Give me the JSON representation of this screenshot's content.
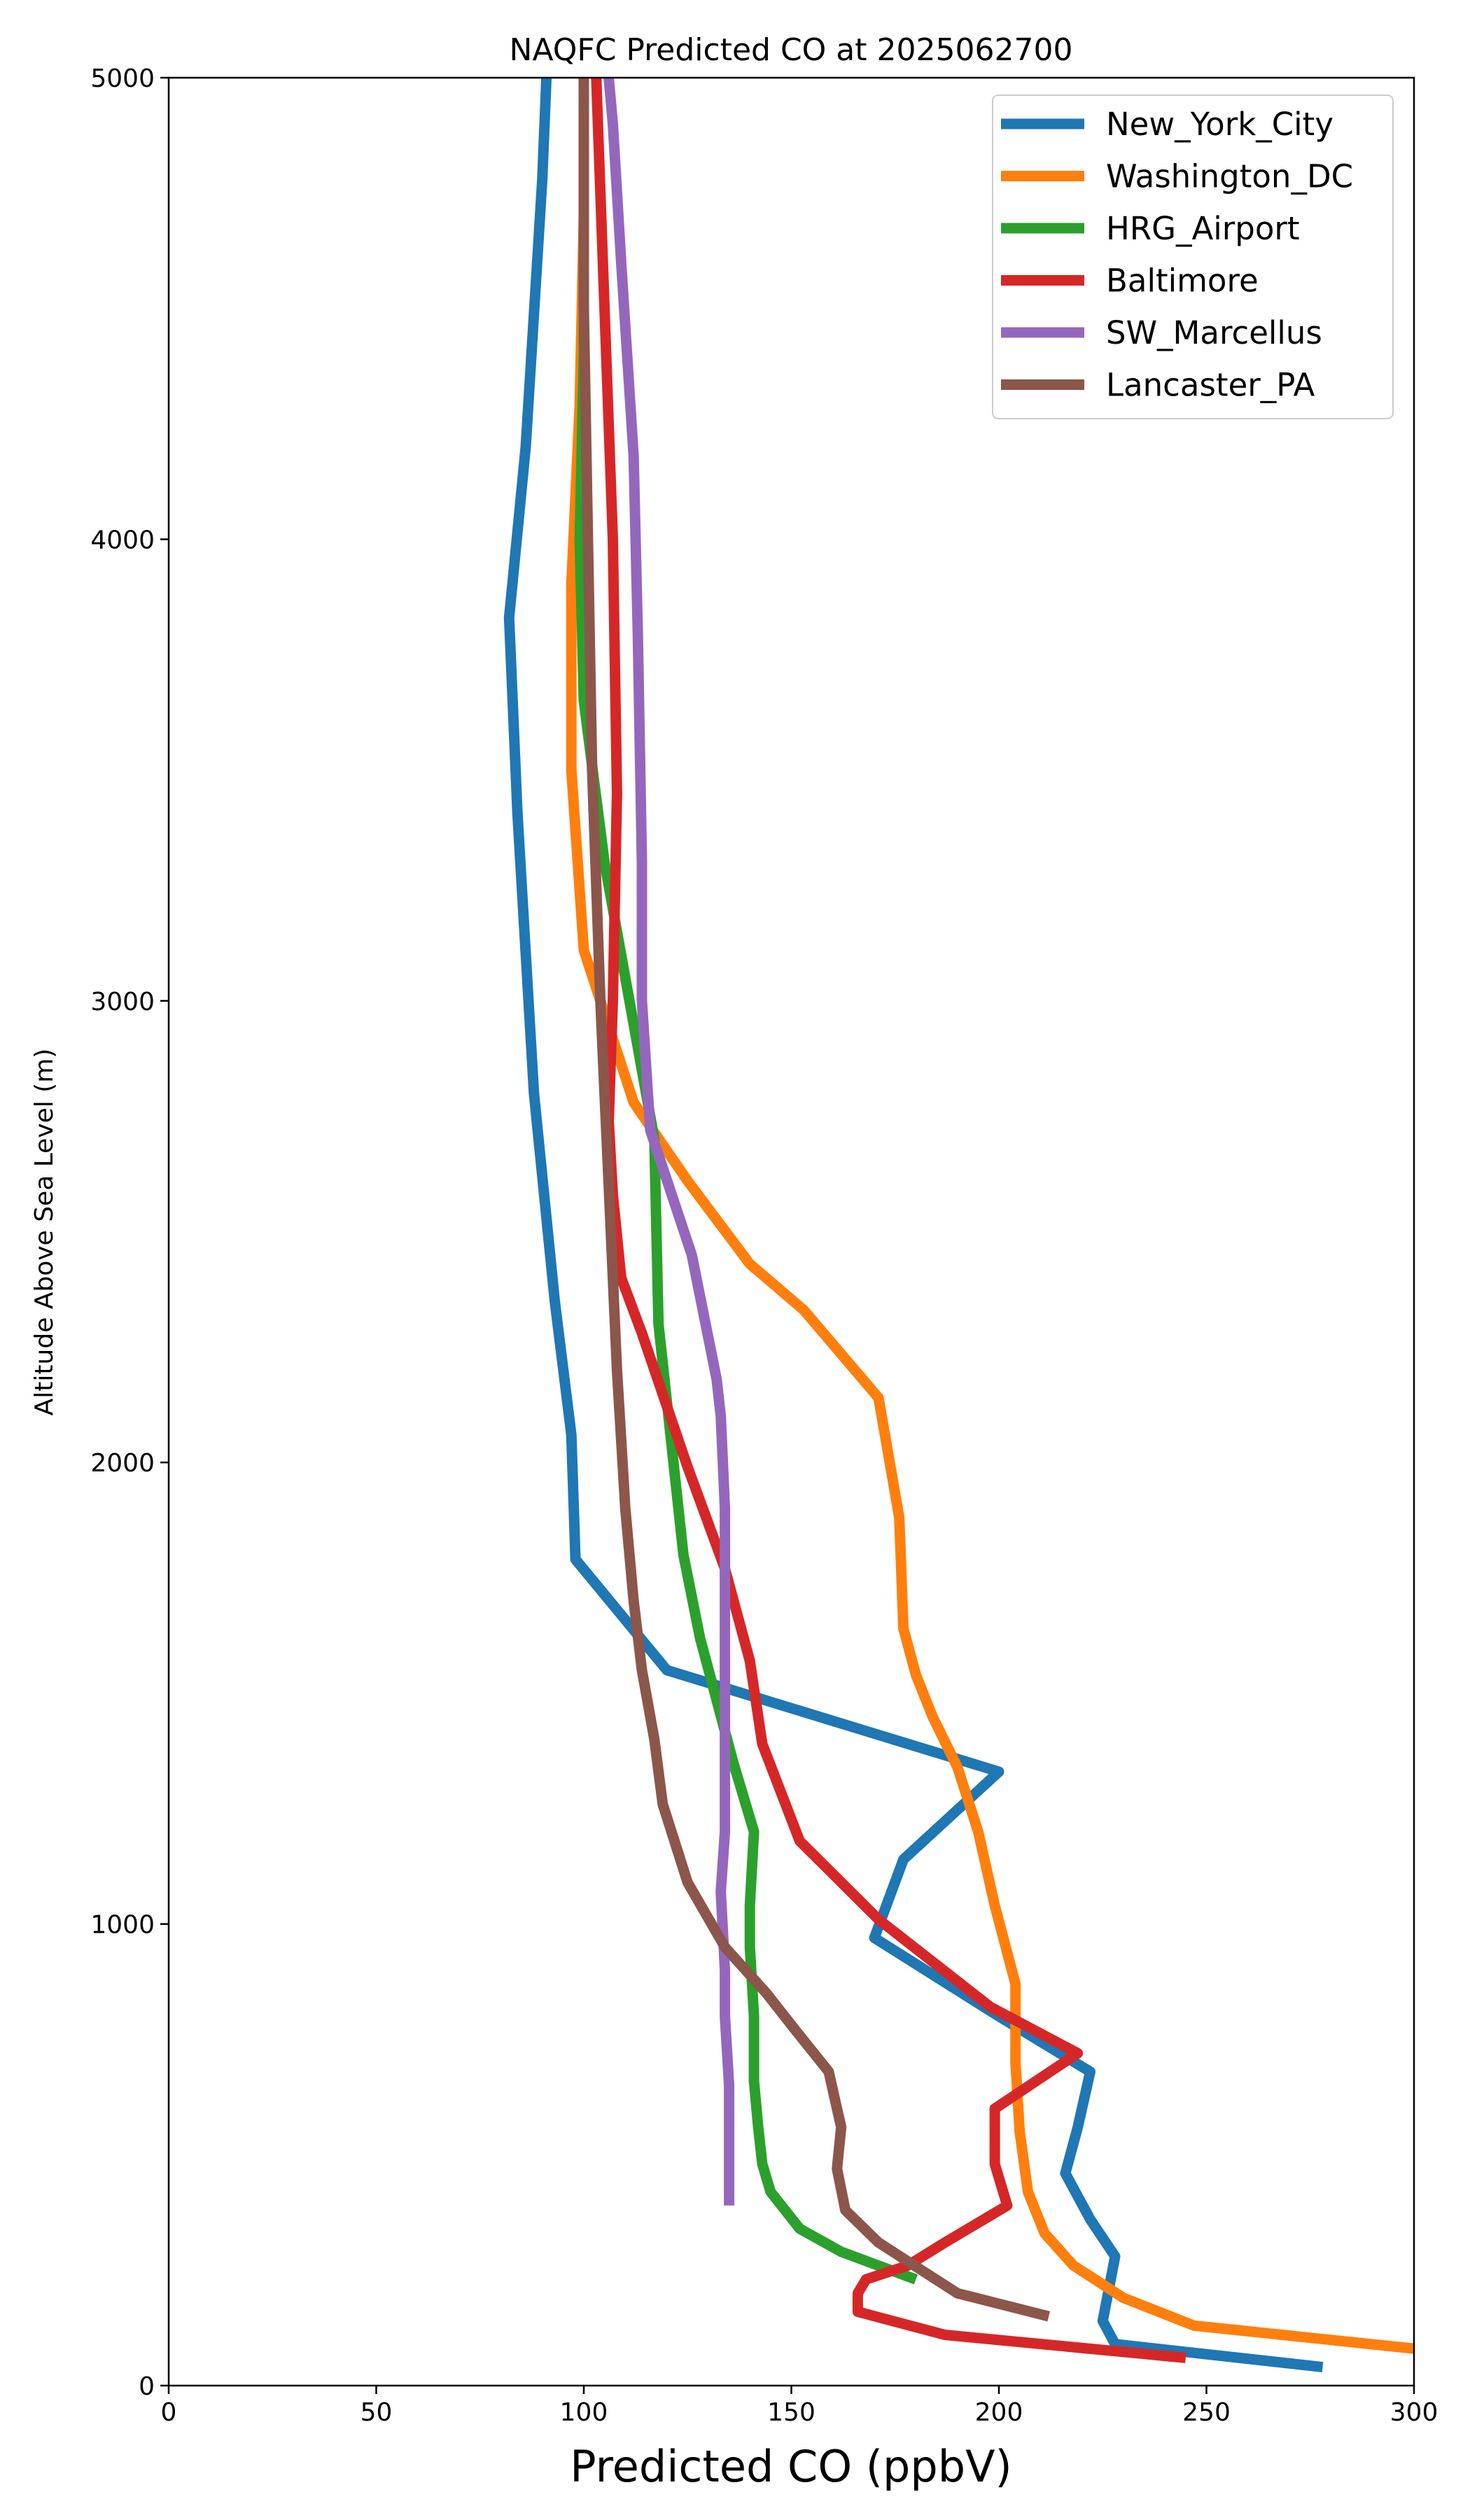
{
  "chart_data": {
    "type": "line",
    "title": "NAQFC Predicted CO at 2025062700",
    "xlabel": "Predicted CO (ppbV)",
    "ylabel": "Altitude Above Sea Level (m)",
    "xlim": [
      0,
      300
    ],
    "ylim": [
      0,
      5000
    ],
    "xticks": [
      "0",
      "50",
      "100",
      "150",
      "200",
      "250",
      "300"
    ],
    "yticks": [
      "0",
      "1000",
      "2000",
      "3000",
      "4000",
      "5000"
    ],
    "grid": false,
    "legend_position": "top-right",
    "series": [
      {
        "name": "New_York_City",
        "color": "#1f77b4",
        "points": [
          [
            278,
            40
          ],
          [
            228,
            90
          ],
          [
            225,
            140
          ],
          [
            228,
            280
          ],
          [
            222,
            360
          ],
          [
            216,
            460
          ],
          [
            219,
            560
          ],
          [
            222,
            680
          ],
          [
            200,
            800
          ],
          [
            170,
            970
          ],
          [
            177,
            1140
          ],
          [
            200,
            1330
          ],
          [
            120,
            1550
          ],
          [
            98,
            1790
          ],
          [
            97,
            2060
          ],
          [
            93,
            2350
          ],
          [
            88,
            2800
          ],
          [
            84,
            3410
          ],
          [
            82,
            3830
          ],
          [
            86,
            4200
          ],
          [
            90,
            4780
          ],
          [
            91,
            5000
          ]
        ]
      },
      {
        "name": "Washington_DC",
        "color": "#ff7f0e",
        "points": [
          [
            300,
            80
          ],
          [
            247,
            130
          ],
          [
            230,
            190
          ],
          [
            218,
            260
          ],
          [
            211,
            330
          ],
          [
            207,
            420
          ],
          [
            205,
            550
          ],
          [
            204,
            700
          ],
          [
            204,
            870
          ],
          [
            199,
            1040
          ],
          [
            195,
            1200
          ],
          [
            190,
            1340
          ],
          [
            184,
            1450
          ],
          [
            180,
            1540
          ],
          [
            177,
            1640
          ],
          [
            176,
            1880
          ],
          [
            171,
            2140
          ],
          [
            153,
            2330
          ],
          [
            140,
            2430
          ],
          [
            125,
            2610
          ],
          [
            112,
            2780
          ],
          [
            100,
            3110
          ],
          [
            97,
            3500
          ],
          [
            97,
            3900
          ],
          [
            99,
            4290
          ],
          [
            100,
            4700
          ],
          [
            100,
            5000
          ]
        ]
      },
      {
        "name": "HRG_Airport",
        "color": "#2ca02c",
        "points": [
          [
            180,
            230
          ],
          [
            162,
            290
          ],
          [
            152,
            340
          ],
          [
            145,
            420
          ],
          [
            143,
            480
          ],
          [
            142,
            560
          ],
          [
            141,
            660
          ],
          [
            141,
            800
          ],
          [
            140,
            950
          ],
          [
            140,
            1040
          ],
          [
            141,
            1200
          ],
          [
            136,
            1350
          ],
          [
            128,
            1620
          ],
          [
            124,
            1800
          ],
          [
            118,
            2300
          ],
          [
            117,
            2700
          ],
          [
            111,
            3000
          ],
          [
            105,
            3300
          ],
          [
            100,
            3650
          ],
          [
            99,
            4000
          ],
          [
            100,
            4400
          ],
          [
            100,
            4700
          ],
          [
            100,
            5000
          ]
        ]
      },
      {
        "name": "Baltimore",
        "color": "#d62728",
        "points": [
          [
            245,
            60
          ],
          [
            187,
            110
          ],
          [
            166,
            160
          ],
          [
            166,
            200
          ],
          [
            168,
            230
          ],
          [
            178,
            260
          ],
          [
            187,
            310
          ],
          [
            202,
            390
          ],
          [
            199,
            480
          ],
          [
            199,
            600
          ],
          [
            219,
            720
          ],
          [
            198,
            820
          ],
          [
            171,
            1010
          ],
          [
            152,
            1180
          ],
          [
            143,
            1390
          ],
          [
            140,
            1570
          ],
          [
            134,
            1770
          ],
          [
            125,
            1990
          ],
          [
            114,
            2280
          ],
          [
            109,
            2400
          ],
          [
            107,
            2580
          ],
          [
            106,
            2740
          ],
          [
            107,
            3000
          ],
          [
            108,
            3450
          ],
          [
            107,
            4000
          ],
          [
            105,
            4500
          ],
          [
            103,
            5000
          ]
        ]
      },
      {
        "name": "SW_Marcellus",
        "color": "#9467bd",
        "points": [
          [
            135,
            390
          ],
          [
            135,
            430
          ],
          [
            135,
            520
          ],
          [
            135,
            650
          ],
          [
            134,
            800
          ],
          [
            134,
            900
          ],
          [
            133,
            1070
          ],
          [
            134,
            1200
          ],
          [
            134,
            1500
          ],
          [
            134,
            1900
          ],
          [
            133,
            2100
          ],
          [
            132,
            2180
          ],
          [
            126,
            2450
          ],
          [
            116,
            2720
          ],
          [
            114,
            3000
          ],
          [
            114,
            3300
          ],
          [
            113,
            3800
          ],
          [
            112,
            4180
          ],
          [
            109,
            4600
          ],
          [
            107,
            4900
          ],
          [
            106,
            5000
          ]
        ]
      },
      {
        "name": "Lancaster_PA",
        "color": "#8c564b",
        "points": [
          [
            212,
            150
          ],
          [
            190,
            200
          ],
          [
            171,
            310
          ],
          [
            163,
            380
          ],
          [
            161,
            470
          ],
          [
            162,
            560
          ],
          [
            161,
            600
          ],
          [
            159,
            680
          ],
          [
            151,
            770
          ],
          [
            144,
            850
          ],
          [
            134,
            950
          ],
          [
            125,
            1090
          ],
          [
            119,
            1260
          ],
          [
            117,
            1400
          ],
          [
            114,
            1550
          ],
          [
            112,
            1700
          ],
          [
            110,
            1900
          ],
          [
            108,
            2200
          ],
          [
            106,
            2600
          ],
          [
            105,
            2800
          ],
          [
            104,
            3000
          ],
          [
            102,
            3500
          ],
          [
            101,
            4000
          ],
          [
            100,
            4500
          ],
          [
            100,
            5000
          ]
        ]
      }
    ]
  }
}
